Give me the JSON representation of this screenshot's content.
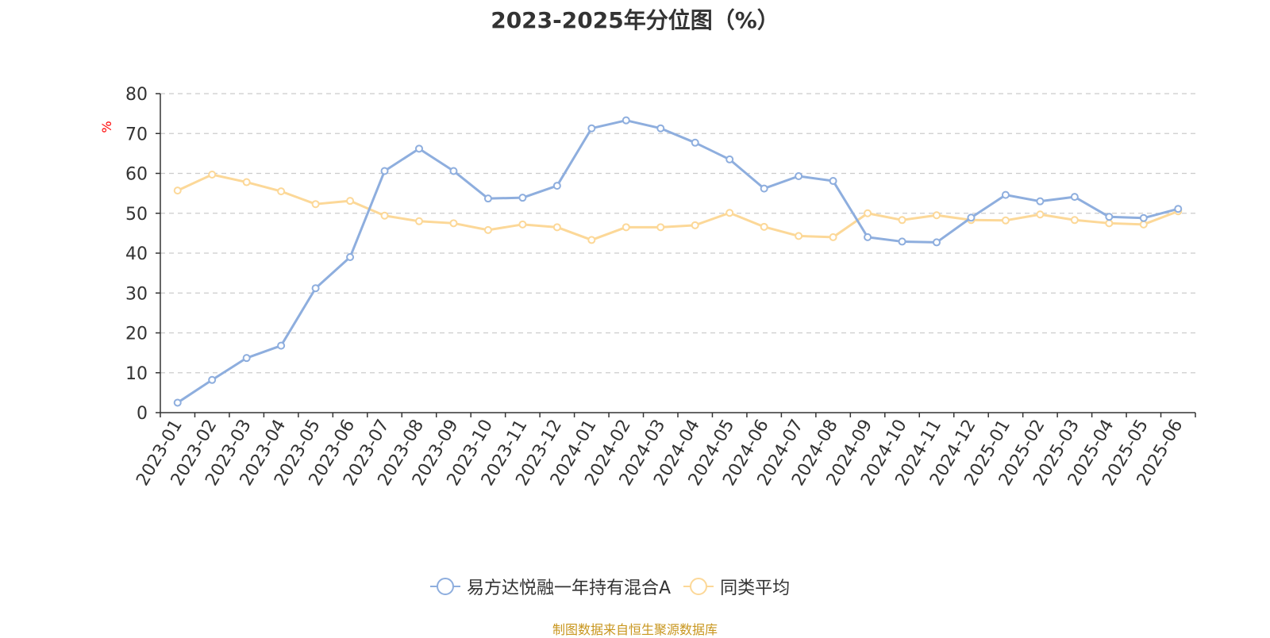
{
  "title": "2023-2025年分位图（%）",
  "source_note": "制图数据来自恒生聚源数据库",
  "colors": {
    "series_a": "#8eaede",
    "series_b": "#fcd898",
    "unit_label": "#ff0000",
    "grid": "#cccccc",
    "axis": "#333333"
  },
  "legend_icon": "circle-line-marker",
  "chart_data": {
    "type": "line",
    "title": "2023-2025年分位图（%）",
    "ylabel": "%",
    "xlabel": "",
    "ylim": [
      0,
      80
    ],
    "yticks": [
      0,
      10,
      20,
      30,
      40,
      50,
      60,
      70,
      80
    ],
    "grid": true,
    "legend_position": "bottom-center",
    "categories": [
      "2023-01",
      "2023-02",
      "2023-03",
      "2023-04",
      "2023-05",
      "2023-06",
      "2023-07",
      "2023-08",
      "2023-09",
      "2023-10",
      "2023-11",
      "2023-12",
      "2024-01",
      "2024-02",
      "2024-03",
      "2024-04",
      "2024-05",
      "2024-06",
      "2024-07",
      "2024-08",
      "2024-09",
      "2024-10",
      "2024-11",
      "2024-12",
      "2025-01",
      "2025-02",
      "2025-03",
      "2025-04",
      "2025-05",
      "2025-06"
    ],
    "series": [
      {
        "name": "易方达悦融一年持有混合A",
        "values": [
          2.5,
          8.2,
          13.7,
          16.8,
          31.2,
          39.0,
          60.6,
          66.2,
          60.6,
          53.7,
          53.9,
          56.9,
          71.3,
          73.3,
          71.3,
          67.7,
          63.5,
          56.2,
          59.3,
          58.1,
          44.0,
          42.9,
          42.7,
          48.9,
          54.6,
          53.0,
          54.1,
          49.1,
          48.8,
          51.1
        ]
      },
      {
        "name": "同类平均",
        "values": [
          55.7,
          59.7,
          57.8,
          55.5,
          52.3,
          53.1,
          49.4,
          48.0,
          47.5,
          45.8,
          47.2,
          46.5,
          43.3,
          46.5,
          46.5,
          47.0,
          50.1,
          46.6,
          44.3,
          44.0,
          50.0,
          48.3,
          49.5,
          48.3,
          48.2,
          49.7,
          48.3,
          47.5,
          47.2,
          50.5
        ]
      }
    ]
  }
}
